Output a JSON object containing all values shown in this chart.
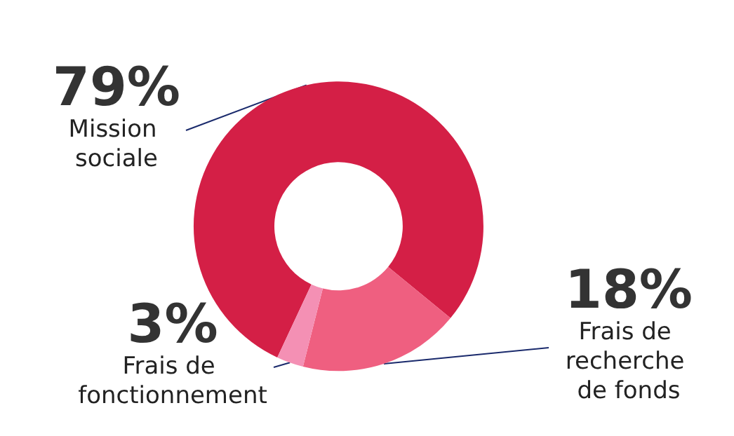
{
  "chart_data": {
    "type": "donut",
    "categories": [
      "Mission sociale",
      "Frais de recherche de fonds",
      "Frais de fonctionnement"
    ],
    "values": [
      79,
      18,
      3
    ],
    "value_labels": [
      "79%",
      "18%",
      "3%"
    ],
    "colors": [
      "#d41f46",
      "#ef5f80",
      "#f490b4"
    ],
    "legend": false
  }
}
